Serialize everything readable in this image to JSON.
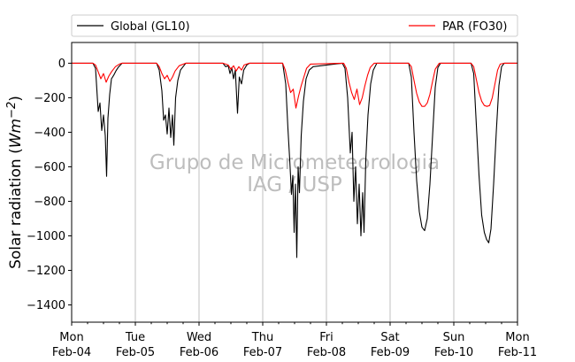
{
  "chart_data": {
    "type": "line",
    "title": "",
    "ylabel": "Solar radiation ($W m{-2}$)",
    "ylabel_parts": [
      "Solar radiation (",
      "Wm",
      "−2",
      ")"
    ],
    "xlabel": "",
    "ylim": [
      -1500,
      120
    ],
    "yticks": [
      0,
      -200,
      -400,
      -600,
      -800,
      -1000,
      -1200,
      -1400
    ],
    "xlim": [
      "2021-02-04",
      "2021-02-11"
    ],
    "xticks": [
      {
        "date": "2021-02-04",
        "day": "Mon",
        "label": "Feb-04"
      },
      {
        "date": "2021-02-05",
        "day": "Tue",
        "label": "Feb-05"
      },
      {
        "date": "2021-02-06",
        "day": "Wed",
        "label": "Feb-06"
      },
      {
        "date": "2021-02-07",
        "day": "Thu",
        "label": "Feb-07"
      },
      {
        "date": "2021-02-08",
        "day": "Fri",
        "label": "Feb-08"
      },
      {
        "date": "2021-02-09",
        "day": "Sat",
        "label": "Feb-09"
      },
      {
        "date": "2021-02-10",
        "day": "Sun",
        "label": "Feb-10"
      },
      {
        "date": "2021-02-11",
        "day": "Mon",
        "label": "Feb-11"
      }
    ],
    "grid": "vertical",
    "legend": "top, outside",
    "watermark": [
      "Grupo de Micrometeorologia",
      "IAG / USP"
    ],
    "series": [
      {
        "name": "Global (GL10)",
        "color": "#000000",
        "points": [
          [
            "2021-02-04 00:00",
            0
          ],
          [
            "2021-02-04 08:00",
            0
          ],
          [
            "2021-02-04 09:00",
            -30
          ],
          [
            "2021-02-04 10:00",
            -280
          ],
          [
            "2021-02-04 10:40",
            -230
          ],
          [
            "2021-02-04 11:20",
            -390
          ],
          [
            "2021-02-04 12:00",
            -300
          ],
          [
            "2021-02-04 12:40",
            -420
          ],
          [
            "2021-02-04 13:10",
            -655
          ],
          [
            "2021-02-04 13:40",
            -320
          ],
          [
            "2021-02-04 14:20",
            -180
          ],
          [
            "2021-02-04 15:00",
            -90
          ],
          [
            "2021-02-04 15:50",
            -70
          ],
          [
            "2021-02-04 16:40",
            -45
          ],
          [
            "2021-02-04 17:30",
            -25
          ],
          [
            "2021-02-04 19:00",
            0
          ],
          [
            "2021-02-05 08:00",
            0
          ],
          [
            "2021-02-05 09:00",
            -40
          ],
          [
            "2021-02-05 10:00",
            -160
          ],
          [
            "2021-02-05 10:40",
            -330
          ],
          [
            "2021-02-05 11:20",
            -300
          ],
          [
            "2021-02-05 12:00",
            -410
          ],
          [
            "2021-02-05 12:40",
            -260
          ],
          [
            "2021-02-05 13:20",
            -430
          ],
          [
            "2021-02-05 14:00",
            -300
          ],
          [
            "2021-02-05 14:30",
            -475
          ],
          [
            "2021-02-05 15:10",
            -200
          ],
          [
            "2021-02-05 16:00",
            -100
          ],
          [
            "2021-02-05 17:00",
            -40
          ],
          [
            "2021-02-05 19:00",
            0
          ],
          [
            "2021-02-06 09:00",
            0
          ],
          [
            "2021-02-06 10:00",
            -20
          ],
          [
            "2021-02-06 11:00",
            -15
          ],
          [
            "2021-02-06 11:40",
            -60
          ],
          [
            "2021-02-06 12:20",
            -25
          ],
          [
            "2021-02-06 13:00",
            -90
          ],
          [
            "2021-02-06 13:40",
            -40
          ],
          [
            "2021-02-06 14:30",
            -290
          ],
          [
            "2021-02-06 15:10",
            -80
          ],
          [
            "2021-02-06 16:00",
            -120
          ],
          [
            "2021-02-06 16:50",
            -40
          ],
          [
            "2021-02-06 18:00",
            -10
          ],
          [
            "2021-02-06 19:00",
            0
          ],
          [
            "2021-02-07 07:30",
            0
          ],
          [
            "2021-02-07 08:40",
            -120
          ],
          [
            "2021-02-07 09:30",
            -380
          ],
          [
            "2021-02-07 10:10",
            -560
          ],
          [
            "2021-02-07 10:50",
            -760
          ],
          [
            "2021-02-07 11:20",
            -650
          ],
          [
            "2021-02-07 11:50",
            -980
          ],
          [
            "2021-02-07 12:20",
            -700
          ],
          [
            "2021-02-07 12:50",
            -1125
          ],
          [
            "2021-02-07 13:20",
            -600
          ],
          [
            "2021-02-07 13:50",
            -750
          ],
          [
            "2021-02-07 14:30",
            -420
          ],
          [
            "2021-02-07 15:20",
            -220
          ],
          [
            "2021-02-07 16:20",
            -90
          ],
          [
            "2021-02-07 17:30",
            -40
          ],
          [
            "2021-02-07 19:00",
            -20
          ],
          [
            "2021-02-08 06:00",
            0
          ],
          [
            "2021-02-08 07:00",
            -30
          ],
          [
            "2021-02-08 08:00",
            -200
          ],
          [
            "2021-02-08 09:00",
            -520
          ],
          [
            "2021-02-08 09:40",
            -400
          ],
          [
            "2021-02-08 10:20",
            -800
          ],
          [
            "2021-02-08 11:00",
            -600
          ],
          [
            "2021-02-08 11:40",
            -930
          ],
          [
            "2021-02-08 12:20",
            -700
          ],
          [
            "2021-02-08 13:00",
            -1000
          ],
          [
            "2021-02-08 13:40",
            -750
          ],
          [
            "2021-02-08 14:10",
            -980
          ],
          [
            "2021-02-08 14:50",
            -560
          ],
          [
            "2021-02-08 15:40",
            -300
          ],
          [
            "2021-02-08 16:40",
            -120
          ],
          [
            "2021-02-08 17:40",
            -40
          ],
          [
            "2021-02-08 19:00",
            0
          ],
          [
            "2021-02-09 07:00",
            0
          ],
          [
            "2021-02-09 08:00",
            -80
          ],
          [
            "2021-02-09 09:00",
            -400
          ],
          [
            "2021-02-09 10:00",
            -680
          ],
          [
            "2021-02-09 11:00",
            -860
          ],
          [
            "2021-02-09 12:00",
            -950
          ],
          [
            "2021-02-09 13:00",
            -970
          ],
          [
            "2021-02-09 14:00",
            -900
          ],
          [
            "2021-02-09 15:00",
            -700
          ],
          [
            "2021-02-09 16:00",
            -420
          ],
          [
            "2021-02-09 17:00",
            -140
          ],
          [
            "2021-02-09 18:00",
            -25
          ],
          [
            "2021-02-09 19:00",
            0
          ],
          [
            "2021-02-10 06:30",
            0
          ],
          [
            "2021-02-10 07:30",
            -60
          ],
          [
            "2021-02-10 08:30",
            -360
          ],
          [
            "2021-02-10 09:30",
            -650
          ],
          [
            "2021-02-10 10:30",
            -880
          ],
          [
            "2021-02-10 11:30",
            -980
          ],
          [
            "2021-02-10 12:20",
            -1020
          ],
          [
            "2021-02-10 13:10",
            -1040
          ],
          [
            "2021-02-10 14:00",
            -960
          ],
          [
            "2021-02-10 15:00",
            -700
          ],
          [
            "2021-02-10 16:00",
            -400
          ],
          [
            "2021-02-10 17:00",
            -130
          ],
          [
            "2021-02-10 18:00",
            -20
          ],
          [
            "2021-02-10 19:00",
            0
          ],
          [
            "2021-02-11 00:00",
            0
          ]
        ]
      },
      {
        "name": "PAR (FO30)",
        "color": "#ff0000",
        "points": [
          [
            "2021-02-04 00:00",
            0
          ],
          [
            "2021-02-04 08:00",
            0
          ],
          [
            "2021-02-04 09:00",
            -10
          ],
          [
            "2021-02-04 10:00",
            -50
          ],
          [
            "2021-02-04 11:00",
            -90
          ],
          [
            "2021-02-04 12:00",
            -60
          ],
          [
            "2021-02-04 13:00",
            -110
          ],
          [
            "2021-02-04 14:00",
            -75
          ],
          [
            "2021-02-04 15:00",
            -50
          ],
          [
            "2021-02-04 16:30",
            -20
          ],
          [
            "2021-02-04 18:00",
            -5
          ],
          [
            "2021-02-04 19:00",
            0
          ],
          [
            "2021-02-05 08:00",
            0
          ],
          [
            "2021-02-05 09:00",
            -20
          ],
          [
            "2021-02-05 10:00",
            -60
          ],
          [
            "2021-02-05 11:00",
            -90
          ],
          [
            "2021-02-05 12:00",
            -70
          ],
          [
            "2021-02-05 13:00",
            -105
          ],
          [
            "2021-02-05 14:00",
            -80
          ],
          [
            "2021-02-05 15:00",
            -45
          ],
          [
            "2021-02-05 16:30",
            -15
          ],
          [
            "2021-02-05 19:00",
            0
          ],
          [
            "2021-02-06 09:00",
            0
          ],
          [
            "2021-02-06 11:00",
            -10
          ],
          [
            "2021-02-06 12:00",
            -35
          ],
          [
            "2021-02-06 13:00",
            -15
          ],
          [
            "2021-02-06 14:00",
            -45
          ],
          [
            "2021-02-06 15:00",
            -20
          ],
          [
            "2021-02-06 16:00",
            -40
          ],
          [
            "2021-02-06 17:00",
            -10
          ],
          [
            "2021-02-06 19:00",
            0
          ],
          [
            "2021-02-07 07:30",
            0
          ],
          [
            "2021-02-07 08:30",
            -40
          ],
          [
            "2021-02-07 09:30",
            -110
          ],
          [
            "2021-02-07 10:30",
            -170
          ],
          [
            "2021-02-07 11:30",
            -150
          ],
          [
            "2021-02-07 12:30",
            -260
          ],
          [
            "2021-02-07 13:30",
            -190
          ],
          [
            "2021-02-07 14:30",
            -130
          ],
          [
            "2021-02-07 15:30",
            -80
          ],
          [
            "2021-02-07 16:30",
            -30
          ],
          [
            "2021-02-07 18:00",
            -5
          ],
          [
            "2021-02-08 06:30",
            0
          ],
          [
            "2021-02-08 07:30",
            -30
          ],
          [
            "2021-02-08 08:30",
            -110
          ],
          [
            "2021-02-08 09:30",
            -170
          ],
          [
            "2021-02-08 10:30",
            -210
          ],
          [
            "2021-02-08 11:30",
            -150
          ],
          [
            "2021-02-08 12:30",
            -240
          ],
          [
            "2021-02-08 13:30",
            -200
          ],
          [
            "2021-02-08 14:30",
            -130
          ],
          [
            "2021-02-08 15:30",
            -70
          ],
          [
            "2021-02-08 16:30",
            -25
          ],
          [
            "2021-02-08 18:00",
            0
          ],
          [
            "2021-02-09 07:00",
            0
          ],
          [
            "2021-02-09 08:00",
            -20
          ],
          [
            "2021-02-09 09:00",
            -100
          ],
          [
            "2021-02-09 10:00",
            -175
          ],
          [
            "2021-02-09 11:00",
            -225
          ],
          [
            "2021-02-09 12:00",
            -250
          ],
          [
            "2021-02-09 13:00",
            -250
          ],
          [
            "2021-02-09 14:00",
            -230
          ],
          [
            "2021-02-09 15:00",
            -180
          ],
          [
            "2021-02-09 16:00",
            -105
          ],
          [
            "2021-02-09 17:00",
            -35
          ],
          [
            "2021-02-09 18:30",
            0
          ],
          [
            "2021-02-10 06:30",
            0
          ],
          [
            "2021-02-10 07:30",
            -20
          ],
          [
            "2021-02-10 08:30",
            -95
          ],
          [
            "2021-02-10 09:30",
            -170
          ],
          [
            "2021-02-10 10:30",
            -220
          ],
          [
            "2021-02-10 11:30",
            -245
          ],
          [
            "2021-02-10 12:30",
            -250
          ],
          [
            "2021-02-10 13:30",
            -245
          ],
          [
            "2021-02-10 14:30",
            -200
          ],
          [
            "2021-02-10 15:30",
            -120
          ],
          [
            "2021-02-10 16:30",
            -40
          ],
          [
            "2021-02-10 17:30",
            -5
          ],
          [
            "2021-02-10 19:00",
            0
          ],
          [
            "2021-02-11 00:00",
            0
          ]
        ]
      }
    ]
  }
}
